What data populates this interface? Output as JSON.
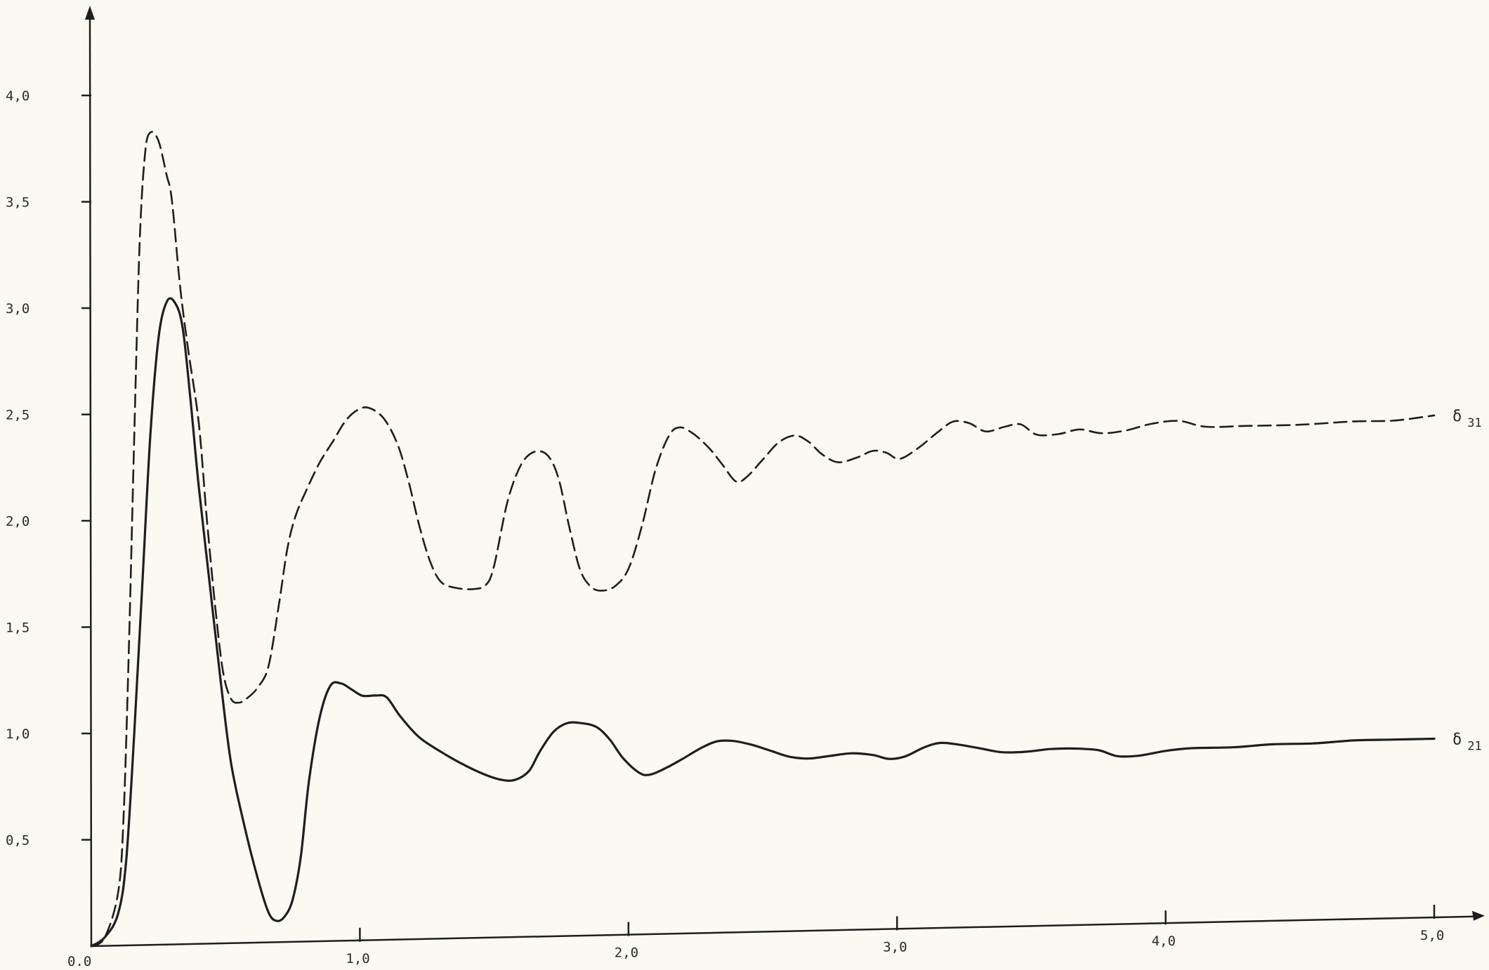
{
  "chart_data": {
    "type": "line",
    "title": "",
    "xlabel": "",
    "ylabel": "",
    "xlim": [
      0,
      5.2
    ],
    "ylim": [
      0,
      4.35
    ],
    "grid": false,
    "x_ticks": [
      {
        "value": 0.0,
        "label": "0.0"
      },
      {
        "value": 1.0,
        "label": "1,0"
      },
      {
        "value": 2.0,
        "label": "2,0"
      },
      {
        "value": 3.0,
        "label": "3,0"
      },
      {
        "value": 4.0,
        "label": "4,0"
      },
      {
        "value": 5.0,
        "label": "5,0"
      }
    ],
    "y_ticks": [
      {
        "value": 0.5,
        "label": "0,5"
      },
      {
        "value": 1.0,
        "label": "1,0"
      },
      {
        "value": 1.5,
        "label": "1,5"
      },
      {
        "value": 2.0,
        "label": "2,0"
      },
      {
        "value": 2.5,
        "label": "2,5"
      },
      {
        "value": 3.0,
        "label": "3,0"
      },
      {
        "value": 3.5,
        "label": "3,5"
      },
      {
        "value": 4.0,
        "label": "4,0"
      }
    ],
    "series": [
      {
        "name": "δ 31",
        "name_main": "δ",
        "name_sub": "31",
        "style": "dashed",
        "color": "#1e1e1e",
        "points": [
          [
            0.0,
            0.0
          ],
          [
            0.05,
            0.04
          ],
          [
            0.1,
            0.25
          ],
          [
            0.12,
            0.6
          ],
          [
            0.14,
            1.4
          ],
          [
            0.16,
            2.4
          ],
          [
            0.18,
            3.3
          ],
          [
            0.2,
            3.72
          ],
          [
            0.22,
            3.82
          ],
          [
            0.25,
            3.78
          ],
          [
            0.28,
            3.62
          ],
          [
            0.3,
            3.5
          ],
          [
            0.33,
            3.1
          ],
          [
            0.36,
            2.8
          ],
          [
            0.4,
            2.45
          ],
          [
            0.43,
            2.0
          ],
          [
            0.46,
            1.6
          ],
          [
            0.49,
            1.28
          ],
          [
            0.52,
            1.15
          ],
          [
            0.55,
            1.13
          ],
          [
            0.58,
            1.15
          ],
          [
            0.62,
            1.2
          ],
          [
            0.66,
            1.3
          ],
          [
            0.7,
            1.6
          ],
          [
            0.73,
            1.85
          ],
          [
            0.76,
            2.0
          ],
          [
            0.8,
            2.12
          ],
          [
            0.85,
            2.25
          ],
          [
            0.9,
            2.35
          ],
          [
            0.95,
            2.45
          ],
          [
            1.0,
            2.5
          ],
          [
            1.04,
            2.5
          ],
          [
            1.09,
            2.45
          ],
          [
            1.14,
            2.33
          ],
          [
            1.18,
            2.16
          ],
          [
            1.22,
            1.95
          ],
          [
            1.26,
            1.78
          ],
          [
            1.3,
            1.68
          ],
          [
            1.35,
            1.65
          ],
          [
            1.42,
            1.64
          ],
          [
            1.47,
            1.66
          ],
          [
            1.5,
            1.75
          ],
          [
            1.55,
            2.05
          ],
          [
            1.6,
            2.22
          ],
          [
            1.65,
            2.28
          ],
          [
            1.7,
            2.26
          ],
          [
            1.74,
            2.15
          ],
          [
            1.78,
            1.92
          ],
          [
            1.82,
            1.72
          ],
          [
            1.86,
            1.64
          ],
          [
            1.9,
            1.62
          ],
          [
            1.95,
            1.64
          ],
          [
            2.0,
            1.72
          ],
          [
            2.05,
            1.92
          ],
          [
            2.1,
            2.18
          ],
          [
            2.15,
            2.34
          ],
          [
            2.19,
            2.38
          ],
          [
            2.24,
            2.35
          ],
          [
            2.3,
            2.28
          ],
          [
            2.35,
            2.2
          ],
          [
            2.4,
            2.12
          ],
          [
            2.44,
            2.14
          ],
          [
            2.5,
            2.22
          ],
          [
            2.56,
            2.3
          ],
          [
            2.62,
            2.33
          ],
          [
            2.67,
            2.3
          ],
          [
            2.72,
            2.24
          ],
          [
            2.78,
            2.2
          ],
          [
            2.85,
            2.22
          ],
          [
            2.91,
            2.25
          ],
          [
            2.96,
            2.24
          ],
          [
            3.01,
            2.21
          ],
          [
            3.08,
            2.26
          ],
          [
            3.15,
            2.33
          ],
          [
            3.21,
            2.38
          ],
          [
            3.27,
            2.37
          ],
          [
            3.33,
            2.33
          ],
          [
            3.4,
            2.35
          ],
          [
            3.46,
            2.36
          ],
          [
            3.52,
            2.31
          ],
          [
            3.6,
            2.31
          ],
          [
            3.68,
            2.33
          ],
          [
            3.76,
            2.31
          ],
          [
            3.85,
            2.32
          ],
          [
            3.95,
            2.35
          ],
          [
            4.05,
            2.36
          ],
          [
            4.15,
            2.33
          ],
          [
            4.3,
            2.33
          ],
          [
            4.5,
            2.33
          ],
          [
            4.7,
            2.34
          ],
          [
            4.85,
            2.34
          ],
          [
            5.0,
            2.36
          ]
        ]
      },
      {
        "name": "δ 21",
        "name_main": "δ",
        "name_sub": "21",
        "style": "solid",
        "color": "#1e1e1e",
        "points": [
          [
            0.0,
            0.0
          ],
          [
            0.05,
            0.04
          ],
          [
            0.1,
            0.15
          ],
          [
            0.13,
            0.4
          ],
          [
            0.16,
            1.0
          ],
          [
            0.19,
            1.7
          ],
          [
            0.22,
            2.4
          ],
          [
            0.25,
            2.85
          ],
          [
            0.28,
            3.02
          ],
          [
            0.31,
            3.02
          ],
          [
            0.34,
            2.9
          ],
          [
            0.37,
            2.55
          ],
          [
            0.4,
            2.15
          ],
          [
            0.44,
            1.7
          ],
          [
            0.48,
            1.25
          ],
          [
            0.52,
            0.85
          ],
          [
            0.57,
            0.55
          ],
          [
            0.62,
            0.3
          ],
          [
            0.66,
            0.14
          ],
          [
            0.69,
            0.1
          ],
          [
            0.72,
            0.12
          ],
          [
            0.75,
            0.2
          ],
          [
            0.78,
            0.4
          ],
          [
            0.81,
            0.75
          ],
          [
            0.85,
            1.05
          ],
          [
            0.89,
            1.2
          ],
          [
            0.93,
            1.21
          ],
          [
            0.97,
            1.18
          ],
          [
            1.01,
            1.15
          ],
          [
            1.06,
            1.15
          ],
          [
            1.1,
            1.14
          ],
          [
            1.15,
            1.05
          ],
          [
            1.22,
            0.95
          ],
          [
            1.3,
            0.88
          ],
          [
            1.38,
            0.82
          ],
          [
            1.46,
            0.77
          ],
          [
            1.53,
            0.74
          ],
          [
            1.58,
            0.74
          ],
          [
            1.63,
            0.78
          ],
          [
            1.67,
            0.87
          ],
          [
            1.72,
            0.96
          ],
          [
            1.77,
            1.0
          ],
          [
            1.82,
            1.0
          ],
          [
            1.88,
            0.98
          ],
          [
            1.93,
            0.92
          ],
          [
            1.98,
            0.83
          ],
          [
            2.04,
            0.76
          ],
          [
            2.08,
            0.75
          ],
          [
            2.14,
            0.78
          ],
          [
            2.2,
            0.82
          ],
          [
            2.27,
            0.87
          ],
          [
            2.33,
            0.9
          ],
          [
            2.39,
            0.9
          ],
          [
            2.46,
            0.88
          ],
          [
            2.53,
            0.85
          ],
          [
            2.6,
            0.82
          ],
          [
            2.67,
            0.81
          ],
          [
            2.75,
            0.82
          ],
          [
            2.83,
            0.83
          ],
          [
            2.91,
            0.82
          ],
          [
            2.97,
            0.8
          ],
          [
            3.03,
            0.81
          ],
          [
            3.1,
            0.85
          ],
          [
            3.16,
            0.87
          ],
          [
            3.23,
            0.86
          ],
          [
            3.31,
            0.84
          ],
          [
            3.39,
            0.82
          ],
          [
            3.48,
            0.82
          ],
          [
            3.57,
            0.83
          ],
          [
            3.66,
            0.83
          ],
          [
            3.75,
            0.82
          ],
          [
            3.82,
            0.79
          ],
          [
            3.9,
            0.79
          ],
          [
            4.0,
            0.81
          ],
          [
            4.1,
            0.82
          ],
          [
            4.25,
            0.82
          ],
          [
            4.4,
            0.83
          ],
          [
            4.55,
            0.83
          ],
          [
            4.7,
            0.84
          ],
          [
            4.85,
            0.84
          ],
          [
            5.0,
            0.84
          ]
        ]
      }
    ]
  }
}
